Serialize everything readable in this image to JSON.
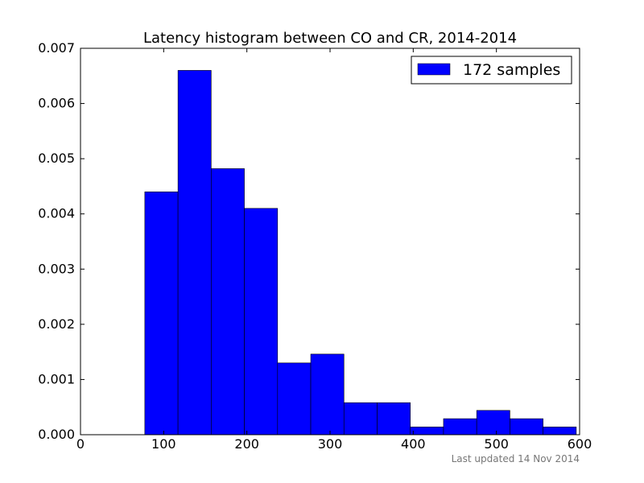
{
  "chart_data": {
    "type": "bar",
    "title": "Latency histogram between CO and CR, 2014-2014",
    "xlabel": "",
    "ylabel": "",
    "xlim": [
      0,
      600
    ],
    "ylim": [
      0,
      0.007
    ],
    "x_ticks": [
      0,
      100,
      200,
      300,
      400,
      500,
      600
    ],
    "y_ticks": [
      0.0,
      0.001,
      0.002,
      0.003,
      0.004,
      0.005,
      0.006,
      0.007
    ],
    "x_tick_labels": [
      "0",
      "100",
      "200",
      "300",
      "400",
      "500",
      "600"
    ],
    "y_tick_labels": [
      "0.000",
      "0.001",
      "0.002",
      "0.003",
      "0.004",
      "0.005",
      "0.006",
      "0.007"
    ],
    "bin_edges": [
      77.3,
      117.2,
      157.1,
      197.0,
      236.9,
      276.8,
      316.7,
      356.6,
      396.5,
      436.4,
      476.3,
      516.2,
      556.1,
      596.0
    ],
    "values": [
      0.0044,
      0.0066,
      0.00482,
      0.0041,
      0.0013,
      0.00146,
      0.00058,
      0.00058,
      0.00014,
      0.00029,
      0.00044,
      0.00029,
      0.00014
    ],
    "series": [
      {
        "name": "172 samples",
        "color": "#0000ff"
      }
    ],
    "legend_position": "top-right",
    "grid": false
  },
  "footer": {
    "text": "Last updated 14 Nov 2014"
  }
}
